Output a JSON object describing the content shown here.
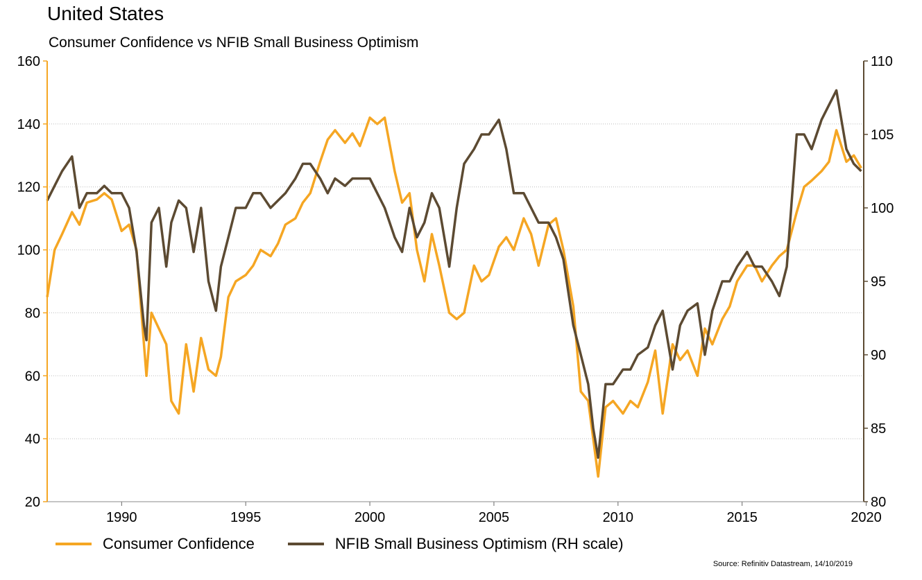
{
  "title": "United States",
  "subtitle": "Consumer Confidence vs NFIB Small Business Optimism",
  "source": "Source: Refinitiv Datastream, 14/10/2019",
  "colors": {
    "consumer": "#F5A623",
    "nfib": "#5C4A32",
    "axis_left": "#F5A623",
    "axis_right": "#5C4A32",
    "grid": "#bbbbbb"
  },
  "chart_data": {
    "type": "line",
    "grid": true,
    "legend_position": "bottom",
    "x_range": [
      1987.0,
      2019.9
    ],
    "x_ticks": [
      "1990",
      "1995",
      "2000",
      "2005",
      "2010",
      "2015",
      "2020"
    ],
    "y_left": {
      "range": [
        20,
        160
      ],
      "ticks": [
        "20",
        "40",
        "60",
        "80",
        "100",
        "120",
        "140",
        "160"
      ]
    },
    "y_right": {
      "range": [
        80,
        110
      ],
      "ticks": [
        "80",
        "85",
        "90",
        "95",
        "100",
        "105",
        "110"
      ],
      "label": "RH scale"
    },
    "series": [
      {
        "name": "Consumer Confidence",
        "axis": "left",
        "x": [
          1987.0,
          1987.3,
          1987.6,
          1988.0,
          1988.3,
          1988.6,
          1989.0,
          1989.3,
          1989.6,
          1990.0,
          1990.3,
          1990.6,
          1990.9,
          1991.0,
          1991.2,
          1991.5,
          1991.8,
          1992.0,
          1992.3,
          1992.6,
          1992.9,
          1993.2,
          1993.5,
          1993.8,
          1994.0,
          1994.3,
          1994.6,
          1995.0,
          1995.3,
          1995.6,
          1996.0,
          1996.3,
          1996.6,
          1997.0,
          1997.3,
          1997.6,
          1998.0,
          1998.3,
          1998.6,
          1999.0,
          1999.3,
          1999.6,
          2000.0,
          2000.3,
          2000.6,
          2001.0,
          2001.3,
          2001.6,
          2001.9,
          2002.2,
          2002.5,
          2002.8,
          2003.2,
          2003.5,
          2003.8,
          2004.2,
          2004.5,
          2004.8,
          2005.2,
          2005.5,
          2005.8,
          2006.2,
          2006.5,
          2006.8,
          2007.2,
          2007.5,
          2007.8,
          2008.2,
          2008.5,
          2008.8,
          2009.0,
          2009.2,
          2009.5,
          2009.8,
          2010.2,
          2010.5,
          2010.8,
          2011.2,
          2011.5,
          2011.8,
          2012.2,
          2012.5,
          2012.8,
          2013.2,
          2013.5,
          2013.8,
          2014.2,
          2014.5,
          2014.8,
          2015.2,
          2015.5,
          2015.8,
          2016.2,
          2016.5,
          2016.8,
          2017.2,
          2017.5,
          2017.8,
          2018.2,
          2018.5,
          2018.8,
          2019.2,
          2019.5,
          2019.8
        ],
        "values": [
          85,
          100,
          105,
          112,
          108,
          115,
          116,
          118,
          116,
          106,
          108,
          100,
          70,
          60,
          80,
          75,
          70,
          52,
          48,
          70,
          55,
          72,
          62,
          60,
          66,
          85,
          90,
          92,
          95,
          100,
          98,
          102,
          108,
          110,
          115,
          118,
          128,
          135,
          138,
          134,
          137,
          133,
          142,
          140,
          142,
          125,
          115,
          118,
          100,
          90,
          105,
          95,
          80,
          78,
          80,
          95,
          90,
          92,
          101,
          104,
          100,
          110,
          105,
          95,
          108,
          110,
          100,
          82,
          55,
          52,
          40,
          28,
          50,
          52,
          48,
          52,
          50,
          58,
          68,
          48,
          70,
          65,
          68,
          60,
          75,
          70,
          78,
          82,
          90,
          95,
          95,
          90,
          95,
          98,
          100,
          112,
          120,
          122,
          125,
          128,
          138,
          128,
          130,
          126
        ]
      },
      {
        "name": "NFIB Small Business Optimism (RH scale)",
        "axis": "right",
        "x": [
          1987.0,
          1987.3,
          1987.6,
          1988.0,
          1988.3,
          1988.6,
          1989.0,
          1989.3,
          1989.6,
          1990.0,
          1990.3,
          1990.6,
          1990.9,
          1991.0,
          1991.2,
          1991.5,
          1991.8,
          1992.0,
          1992.3,
          1992.6,
          1992.9,
          1993.2,
          1993.5,
          1993.8,
          1994.0,
          1994.3,
          1994.6,
          1995.0,
          1995.3,
          1995.6,
          1996.0,
          1996.3,
          1996.6,
          1997.0,
          1997.3,
          1997.6,
          1998.0,
          1998.3,
          1998.6,
          1999.0,
          1999.3,
          1999.6,
          2000.0,
          2000.3,
          2000.6,
          2001.0,
          2001.3,
          2001.6,
          2001.9,
          2002.2,
          2002.5,
          2002.8,
          2003.2,
          2003.5,
          2003.8,
          2004.2,
          2004.5,
          2004.8,
          2005.2,
          2005.5,
          2005.8,
          2006.2,
          2006.5,
          2006.8,
          2007.2,
          2007.5,
          2007.8,
          2008.2,
          2008.5,
          2008.8,
          2009.0,
          2009.2,
          2009.5,
          2009.8,
          2010.2,
          2010.5,
          2010.8,
          2011.2,
          2011.5,
          2011.8,
          2012.2,
          2012.5,
          2012.8,
          2013.2,
          2013.5,
          2013.8,
          2014.2,
          2014.5,
          2014.8,
          2015.2,
          2015.5,
          2015.8,
          2016.2,
          2016.5,
          2016.8,
          2017.2,
          2017.5,
          2017.8,
          2018.2,
          2018.5,
          2018.8,
          2019.2,
          2019.5,
          2019.8
        ],
        "values": [
          100.5,
          101.5,
          102.5,
          103.5,
          100,
          101,
          101,
          101.5,
          101,
          101,
          100,
          97,
          92,
          91,
          99,
          100,
          96,
          99,
          100.5,
          100,
          97,
          100,
          95,
          93,
          96,
          98,
          100,
          100,
          101,
          101,
          100,
          100.5,
          101,
          102,
          103,
          103,
          102,
          101,
          102,
          101.5,
          102,
          102,
          102,
          101,
          100,
          98,
          97,
          100,
          98,
          99,
          101,
          100,
          96,
          100,
          103,
          104,
          105,
          105,
          106,
          104,
          101,
          101,
          100,
          99,
          99,
          98,
          96.5,
          92,
          90,
          88,
          85,
          83,
          88,
          88,
          89,
          89,
          90,
          90.5,
          92,
          93,
          89,
          92,
          93,
          93.5,
          90,
          93,
          95,
          95,
          96,
          97,
          96,
          96,
          95,
          94,
          96,
          105,
          105,
          104,
          106,
          107,
          108,
          104,
          103,
          102.5
        ]
      }
    ]
  }
}
